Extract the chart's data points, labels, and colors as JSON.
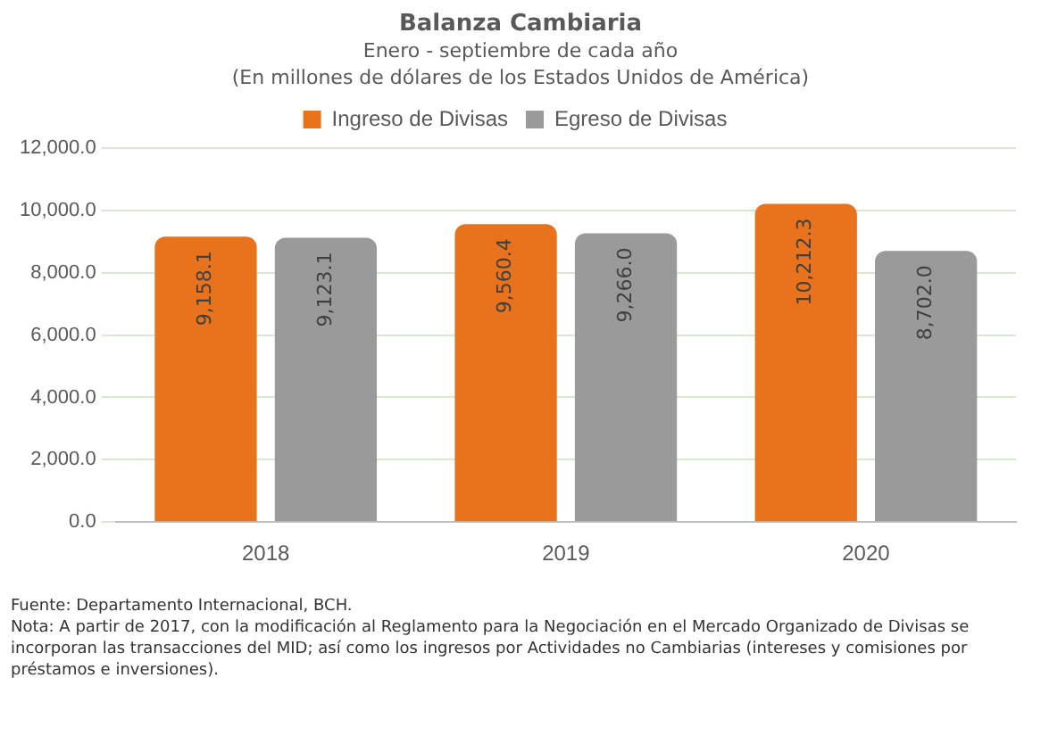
{
  "chart_data": {
    "type": "bar",
    "title": "Balanza Cambiaria",
    "subtitle": "Enero - septiembre de cada año\n(En millones de dólares de los Estados Unidos de América)",
    "categories": [
      "2018",
      "2019",
      "2020"
    ],
    "series": [
      {
        "name": "Ingreso de Divisas",
        "color": "#e8731c",
        "values": [
          9158.1,
          9560.4,
          10212.3
        ]
      },
      {
        "name": "Egreso de Divisas",
        "color": "#9a9a9a",
        "values": [
          9123.1,
          9266.0,
          8702.0
        ]
      }
    ],
    "ylim": [
      0,
      12000
    ],
    "yticks": [
      {
        "value": 0,
        "label": "0.0"
      },
      {
        "value": 2000,
        "label": "2,000.0"
      },
      {
        "value": 4000,
        "label": "4,000.0"
      },
      {
        "value": 6000,
        "label": "6,000.0"
      },
      {
        "value": 8000,
        "label": "8,000.0"
      },
      {
        "value": 10000,
        "label": "10,000.0"
      },
      {
        "value": 12000,
        "label": "12,000.0"
      }
    ],
    "grid": "y",
    "legend": "top",
    "value_labels": [
      [
        "9,158.1",
        "9,560.4",
        "10,212.3"
      ],
      [
        "9,123.1",
        "9,266.0",
        "8,702.0"
      ]
    ],
    "annotations": [
      "Fuente: Departamento Internacional, BCH.",
      "Nota: A partir de 2017, con la modificación al Reglamento para la Negociación en el Mercado Organizado de Divisas se incorporan las transacciones del MID; así como los ingresos por Actividades no Cambiarias (intereses y comisiones por préstamos e inversiones)."
    ]
  }
}
